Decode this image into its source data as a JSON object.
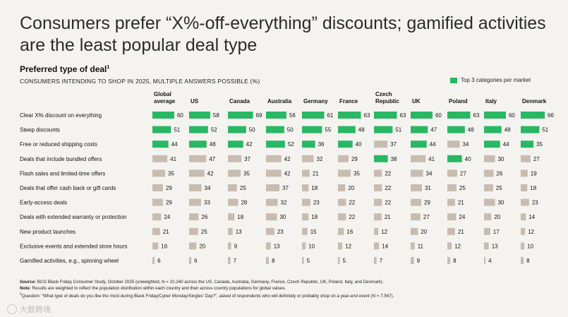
{
  "header": {
    "title": "Consumers prefer “X%-off-everything” discounts; gamified activities are the least popular deal type",
    "subtitle": "Preferred type of deal",
    "subtitle_sup": "1",
    "caption": "CONSUMERS INTENDING TO SHOP IN 2025, MULTIPLE ANSWERS POSSIBLE (%)"
  },
  "legend": {
    "label": "Top 3 categories per market"
  },
  "colors": {
    "top3": "#29b764",
    "other": "#c8bcb1",
    "background": "#f4f3ef"
  },
  "chart_data": {
    "type": "bar",
    "title": "Preferred type of deal",
    "categories": [
      "Clear X% discount on everything",
      "Steep discounts",
      "Free or reduced shipping costs",
      "Deals that include bundled offers",
      "Flash sales and limited-time offers",
      "Deals that offer cash back or gift cards",
      "Early-access deals",
      "Deals with extended warranty or protection",
      "New product launches",
      "Exclusive events and extended store hours",
      "Gamified activities, e.g., spinning wheel"
    ],
    "xlim": [
      0,
      100
    ],
    "series": [
      {
        "name": "Global average",
        "values": [
          60,
          51,
          44,
          41,
          35,
          29,
          29,
          24,
          21,
          16,
          6
        ],
        "top3": [
          1,
          1,
          1,
          0,
          0,
          0,
          0,
          0,
          0,
          0,
          0
        ]
      },
      {
        "name": "US",
        "values": [
          58,
          52,
          48,
          47,
          42,
          34,
          33,
          26,
          25,
          20,
          6
        ],
        "top3": [
          1,
          1,
          1,
          0,
          0,
          0,
          0,
          0,
          0,
          0,
          0
        ]
      },
      {
        "name": "Canada",
        "values": [
          69,
          50,
          42,
          37,
          35,
          25,
          28,
          18,
          13,
          9,
          7
        ],
        "top3": [
          1,
          1,
          1,
          0,
          0,
          0,
          0,
          0,
          0,
          0,
          0
        ]
      },
      {
        "name": "Australia",
        "values": [
          56,
          50,
          52,
          42,
          42,
          37,
          32,
          30,
          23,
          13,
          8
        ],
        "top3": [
          1,
          1,
          1,
          0,
          0,
          0,
          0,
          0,
          0,
          0,
          0
        ]
      },
      {
        "name": "Germany",
        "values": [
          61,
          55,
          36,
          32,
          21,
          18,
          23,
          18,
          15,
          10,
          5
        ],
        "top3": [
          1,
          1,
          1,
          0,
          0,
          0,
          0,
          0,
          0,
          0,
          0
        ]
      },
      {
        "name": "France",
        "values": [
          63,
          48,
          40,
          29,
          35,
          20,
          22,
          22,
          16,
          12,
          5
        ],
        "top3": [
          1,
          1,
          1,
          0,
          0,
          0,
          0,
          0,
          0,
          0,
          0
        ]
      },
      {
        "name": "Czech Republic",
        "values": [
          63,
          51,
          37,
          38,
          22,
          22,
          22,
          21,
          12,
          14,
          7
        ],
        "top3": [
          1,
          1,
          0,
          1,
          0,
          0,
          0,
          0,
          0,
          0,
          0
        ]
      },
      {
        "name": "UK",
        "values": [
          60,
          47,
          44,
          41,
          34,
          31,
          29,
          27,
          20,
          11,
          9
        ],
        "top3": [
          1,
          1,
          1,
          0,
          0,
          0,
          0,
          0,
          0,
          0,
          0
        ]
      },
      {
        "name": "Poland",
        "values": [
          63,
          48,
          34,
          40,
          27,
          25,
          21,
          24,
          21,
          12,
          8
        ],
        "top3": [
          1,
          1,
          0,
          1,
          0,
          0,
          0,
          0,
          0,
          0,
          0
        ]
      },
      {
        "name": "Italy",
        "values": [
          60,
          48,
          44,
          30,
          26,
          25,
          30,
          20,
          17,
          13,
          4
        ],
        "top3": [
          1,
          1,
          1,
          0,
          0,
          0,
          0,
          0,
          0,
          0,
          0
        ]
      },
      {
        "name": "Denmark",
        "values": [
          66,
          51,
          35,
          27,
          19,
          18,
          23,
          14,
          12,
          10,
          8
        ],
        "top3": [
          1,
          1,
          1,
          0,
          0,
          0,
          0,
          0,
          0,
          0,
          0
        ]
      }
    ]
  },
  "footnotes": {
    "source_label": "Source:",
    "source": "BCG Black Friday Consumer Study, October 2025 (unweighted, N = 10,240 across the US, Canada, Australia, Germany, France, Czech Republic, UK, Poland, Italy, and Denmark).",
    "note_label": "Note:",
    "note": "Results are weighted to reflect the population distribution within each country and then across country populations for global values.",
    "question_sup": "1",
    "question": "Question: “What type of deals do you like the most during Black Friday/Cyber Monday/Singles’ Day?”, asked of respondents who will definitely or probably shop on a year-end event (N = 7,567)."
  },
  "watermark": {
    "text": "大数跨境"
  }
}
